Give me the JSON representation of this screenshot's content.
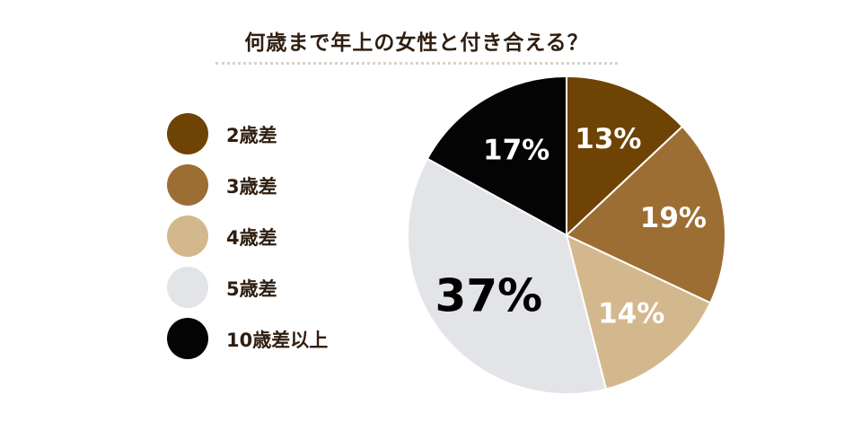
{
  "chart_data": {
    "type": "pie",
    "title": "何歳まで年上の女性と付き合える？",
    "categories": [
      "2歳差",
      "3歳差",
      "4歳差",
      "5歳差",
      "10歳差以上"
    ],
    "values": [
      13,
      19,
      14,
      37,
      17
    ],
    "value_labels": [
      "13%",
      "19%",
      "14%",
      "37%",
      "17%"
    ],
    "colors": [
      "#6e4304",
      "#9d6e33",
      "#d4b88d",
      "#e3e4e8",
      "#040404"
    ],
    "label_colors": [
      "#ffffff",
      "#ffffff",
      "#ffffff",
      "#000000",
      "#ffffff"
    ],
    "start": "12 o'clock, clockwise",
    "legend_position": "left"
  }
}
